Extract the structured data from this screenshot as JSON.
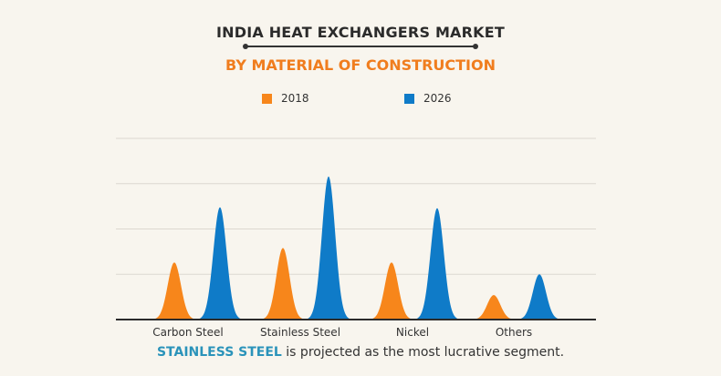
{
  "chart_data": {
    "type": "area",
    "title": "INDIA HEAT EXCHANGERS MARKET",
    "subtitle": "BY MATERIAL OF CONSTRUCTION",
    "categories": [
      "Carbon Steel",
      "Stainless Steel",
      "Nickel",
      "Others"
    ],
    "series": [
      {
        "name": "2018",
        "color": "#f7861b",
        "values": [
          1.26,
          1.58,
          1.26,
          0.54
        ]
      },
      {
        "name": "2026",
        "color": "#0f7bc8",
        "values": [
          2.48,
          3.16,
          2.46,
          1.0
        ]
      }
    ],
    "ylim": [
      0,
      4
    ],
    "grid": true,
    "legend": "top",
    "xlabel": "",
    "ylabel": ""
  },
  "footer": {
    "highlight": "STAINLESS STEEL",
    "text": " is projected as the most lucrative segment."
  }
}
